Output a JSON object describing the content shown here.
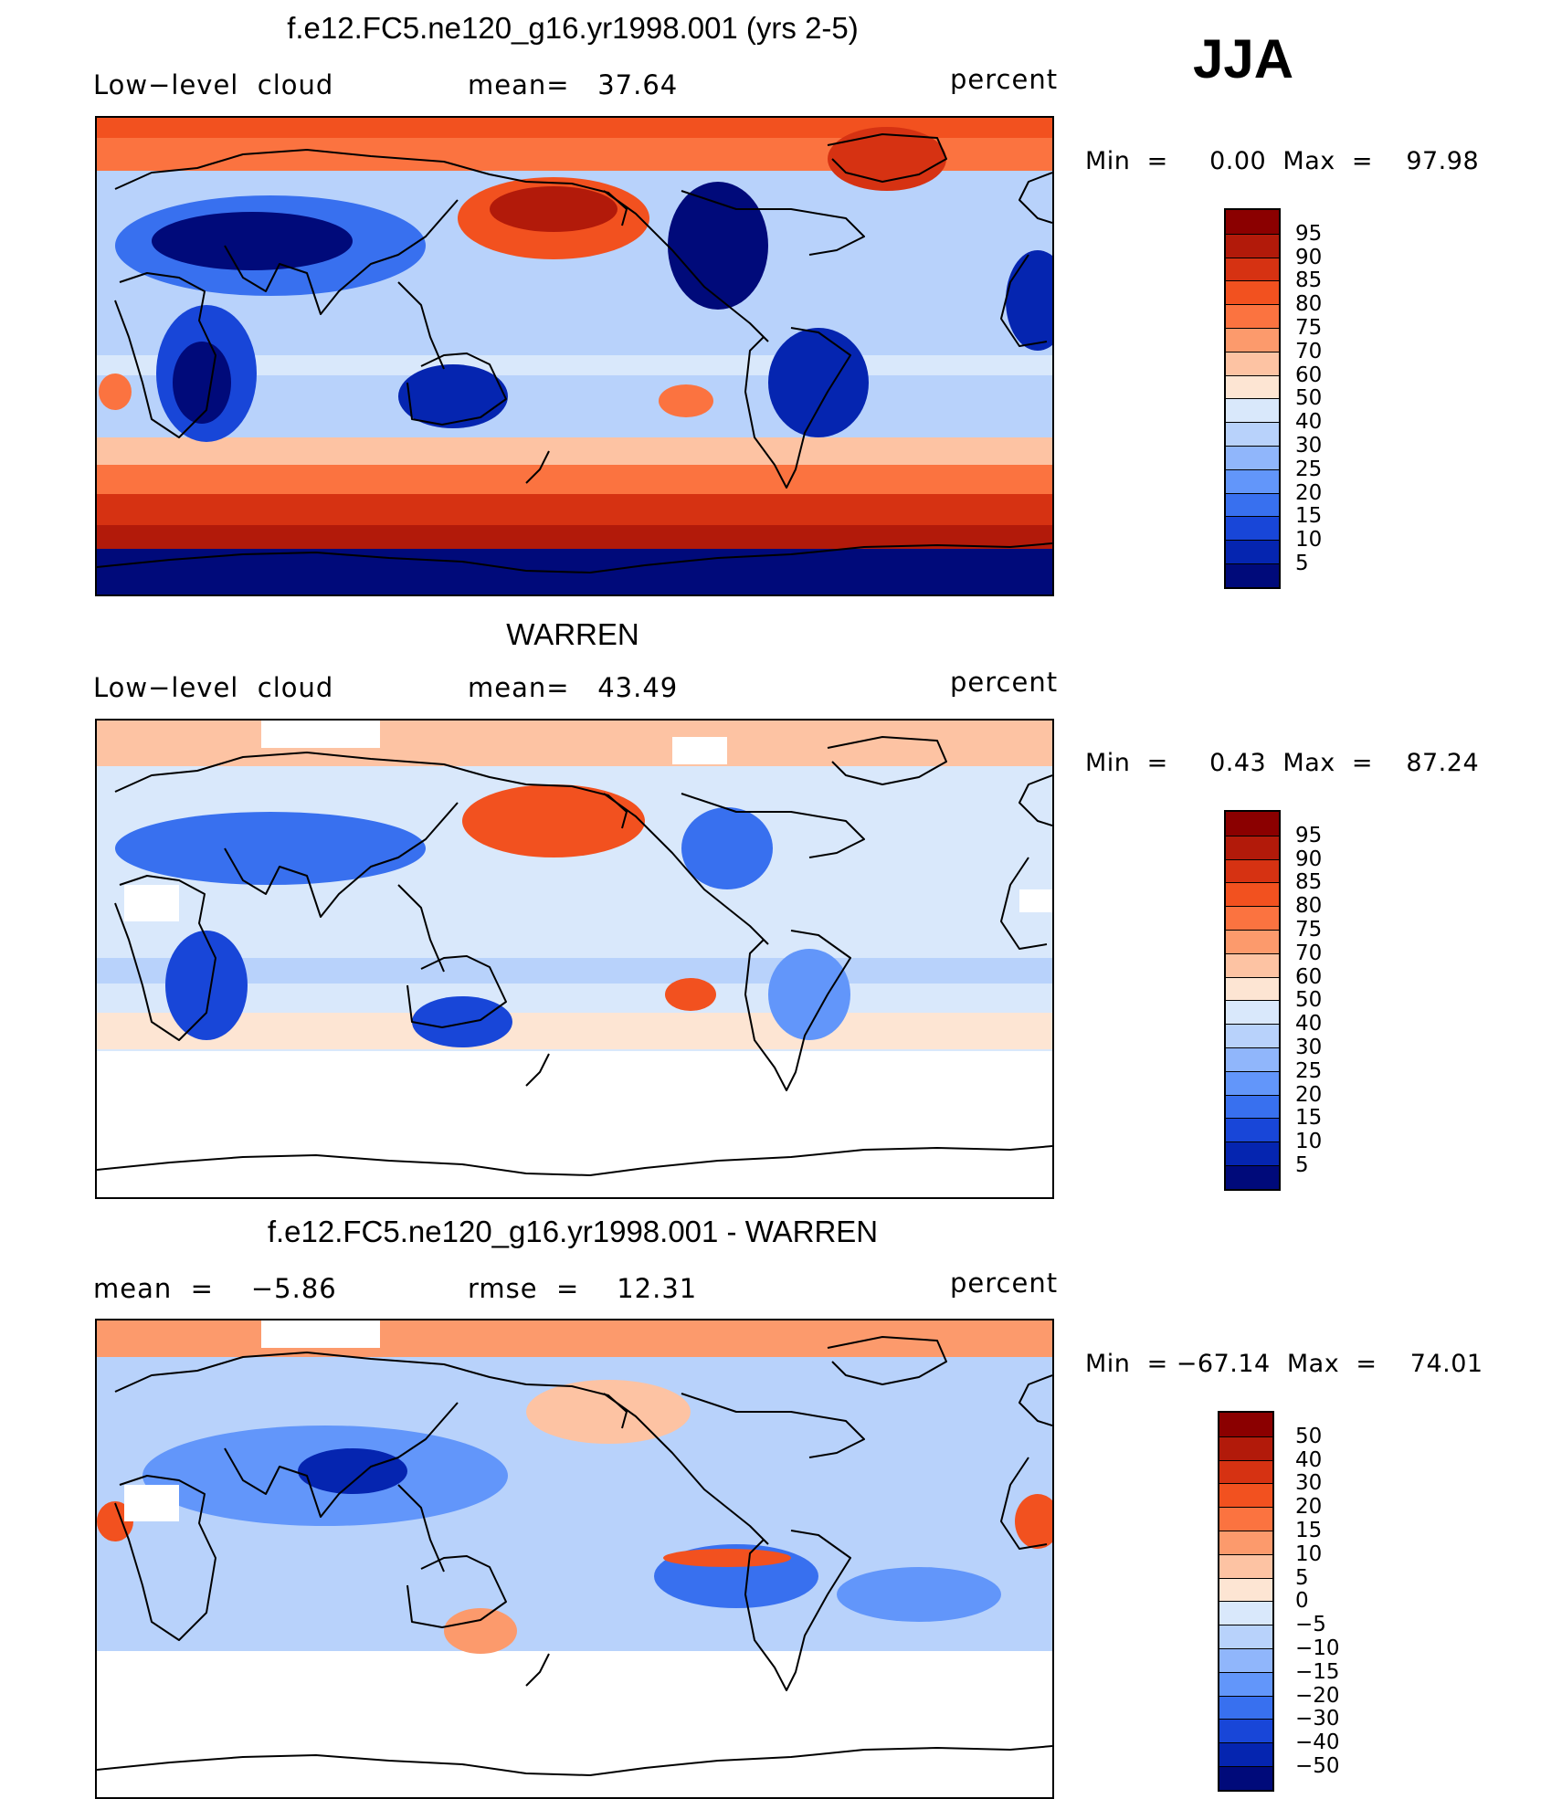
{
  "season": "JJA",
  "panels": [
    {
      "title": "f.e12.FC5.ne120_g16.yr1998.001 (yrs 2-5)",
      "left_label": "Low−level  cloud",
      "center_label": "mean=   37.64",
      "right_label": "percent",
      "minmax": "Min  =     0.00  Max  =    97.98",
      "map_variant": "model",
      "map_description_icon": "world-map"
    },
    {
      "title": "WARREN",
      "left_label": "Low−level  cloud",
      "center_label": "mean=   43.49",
      "right_label": "percent",
      "minmax": "Min  =     0.43  Max  =    87.24",
      "map_variant": "obs",
      "map_description_icon": "world-map"
    },
    {
      "title": "f.e12.FC5.ne120_g16.yr1998.001 - WARREN",
      "left_label": "mean  =    −5.86",
      "center_label": "rmse  =    12.31",
      "right_label": "percent",
      "minmax": "Min  = −67.14  Max  =    74.01",
      "map_variant": "diff",
      "map_description_icon": "world-map"
    }
  ],
  "colorbars": {
    "abs": {
      "labels": [
        "95",
        "90",
        "85",
        "80",
        "75",
        "70",
        "60",
        "50",
        "40",
        "30",
        "25",
        "20",
        "15",
        "10",
        "5"
      ],
      "colors": [
        "#8b0000",
        "#b21a0a",
        "#d63212",
        "#f2511f",
        "#fb7340",
        "#fc9a6c",
        "#fdc3a3",
        "#fde5d3",
        "#d9e8fb",
        "#b8d2fb",
        "#90b6fb",
        "#6296fa",
        "#3870ef",
        "#1846d8",
        "#0525b0",
        "#000a7a"
      ]
    },
    "diff": {
      "labels": [
        "50",
        "40",
        "30",
        "20",
        "15",
        "10",
        "5",
        "0",
        "−5",
        "−10",
        "−15",
        "−20",
        "−30",
        "−40",
        "−50"
      ],
      "colors": [
        "#8b0000",
        "#b21a0a",
        "#d63212",
        "#f2511f",
        "#fb7340",
        "#fc9a6c",
        "#fdc3a3",
        "#fde5d3",
        "#d9e8fb",
        "#b8d2fb",
        "#90b6fb",
        "#6296fa",
        "#3870ef",
        "#1846d8",
        "#0525b0",
        "#000a7a"
      ]
    }
  }
}
